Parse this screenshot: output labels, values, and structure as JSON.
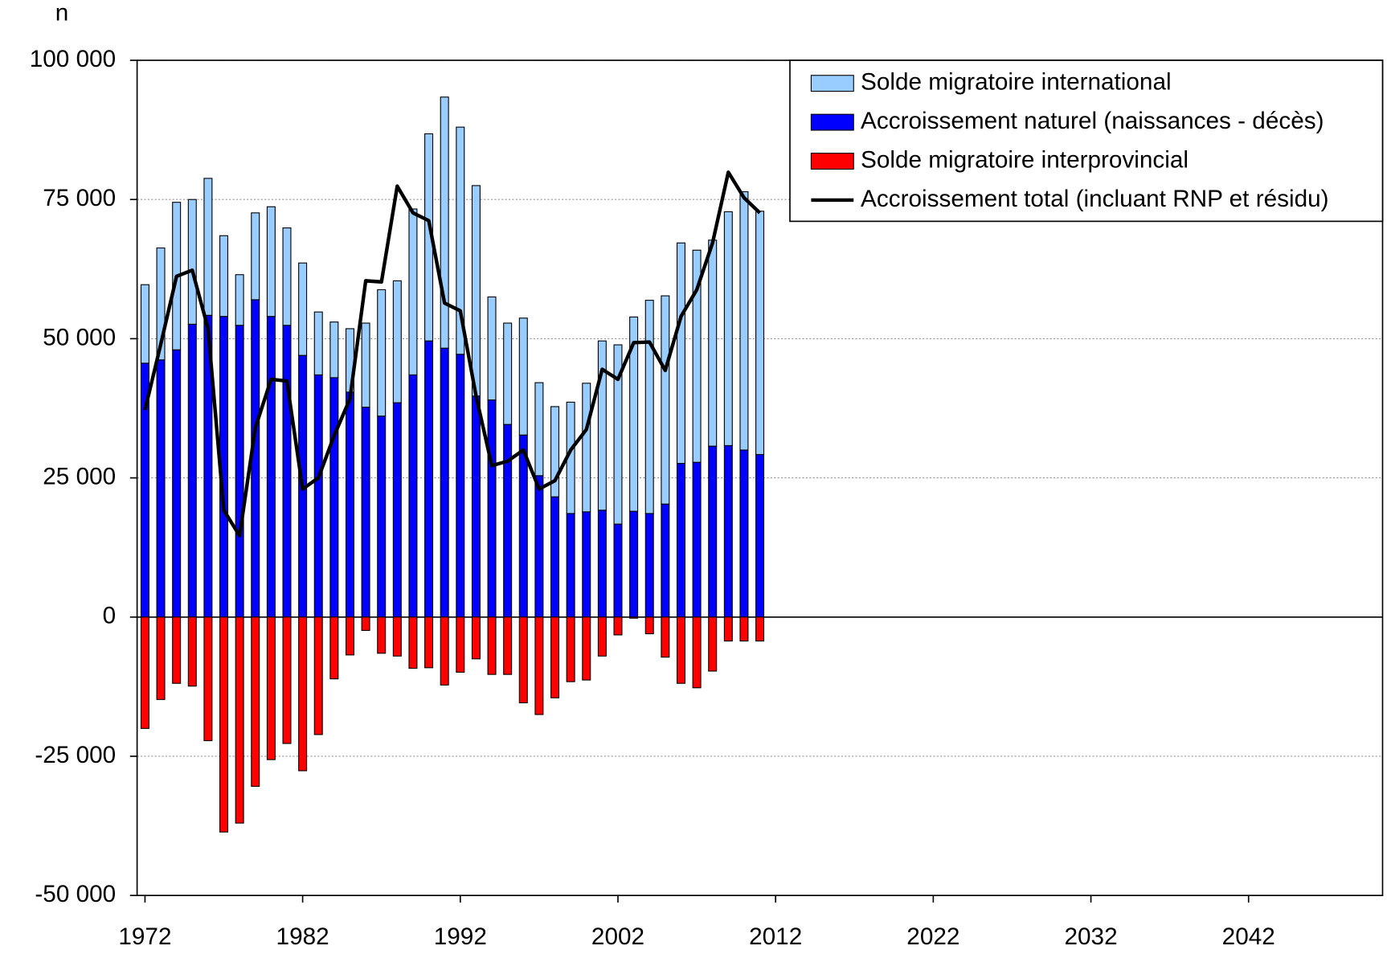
{
  "chart_data": {
    "type": "bar",
    "y_label": "n",
    "x": [
      1972,
      1973,
      1974,
      1975,
      1976,
      1977,
      1978,
      1979,
      1980,
      1981,
      1982,
      1983,
      1984,
      1985,
      1986,
      1987,
      1988,
      1989,
      1990,
      1991,
      1992,
      1993,
      1994,
      1995,
      1996,
      1997,
      1998,
      1999,
      2000,
      2001,
      2002,
      2003,
      2004,
      2005,
      2006,
      2007,
      2008,
      2009,
      2010,
      2011
    ],
    "series": [
      {
        "name": "Solde migratoire international",
        "color": "#99ccff",
        "values": [
          14100,
          20100,
          26500,
          22400,
          24600,
          14500,
          9100,
          15600,
          19700,
          17500,
          16600,
          11300,
          10000,
          11400,
          15100,
          22700,
          21900,
          29800,
          37200,
          45100,
          40800,
          37800,
          18500,
          18200,
          21000,
          16700,
          16200,
          20000,
          23100,
          30400,
          32200,
          34900,
          38300,
          37400,
          39600,
          38100,
          37000,
          42000,
          46400,
          43700
        ]
      },
      {
        "name": "Accroissement naturel (naissances - décès)",
        "color": "#0000ff",
        "values": [
          45600,
          46200,
          48000,
          52600,
          54200,
          54000,
          52400,
          57000,
          54000,
          52400,
          47000,
          43500,
          43000,
          40400,
          37700,
          36100,
          38500,
          43500,
          49600,
          48300,
          47200,
          39700,
          39000,
          34600,
          32700,
          25400,
          21600,
          18600,
          18900,
          19200,
          16700,
          19000,
          18600,
          20300,
          27600,
          27800,
          30700,
          30800,
          30000,
          29200
        ]
      },
      {
        "name": "Solde migratoire interprovincial",
        "color": "#ff0000",
        "values": [
          -20000,
          -14800,
          -11900,
          -12400,
          -22200,
          -38600,
          -37000,
          -30400,
          -25600,
          -22700,
          -27600,
          -21100,
          -11100,
          -6800,
          -2400,
          -6500,
          -7000,
          -9200,
          -9100,
          -12200,
          -9900,
          -7500,
          -10300,
          -10300,
          -15400,
          -17500,
          -14500,
          -11600,
          -11300,
          -7000,
          -3200,
          -200,
          -3000,
          -7200,
          -11900,
          -12700,
          -9700,
          -4300,
          -4300,
          -4300
        ]
      },
      {
        "name": "Accroissement total (incluant RNP et résidu)",
        "color": "#000000",
        "type": "line",
        "values": [
          37200,
          49000,
          61200,
          62300,
          51800,
          19200,
          14600,
          34000,
          42700,
          42400,
          23000,
          25000,
          32600,
          39200,
          60400,
          60200,
          77400,
          72600,
          71200,
          56400,
          55000,
          39700,
          27200,
          28000,
          30000,
          23000,
          24500,
          30000,
          33700,
          44500,
          42700,
          49300,
          49400,
          44300,
          54000,
          58800,
          67200,
          79900,
          75300,
          72600
        ]
      }
    ],
    "xlim": [
      1971.5,
      2050.5
    ],
    "xticks": [
      1972,
      1982,
      1992,
      2002,
      2012,
      2022,
      2032,
      2042
    ],
    "ylim": [
      -50000,
      100000
    ],
    "yticks": [
      {
        "value": -50000,
        "label": "-50 000"
      },
      {
        "value": -25000,
        "label": "-25 000"
      },
      0,
      {
        "value": 25000,
        "label": "25 000"
      },
      {
        "value": 50000,
        "label": "50 000"
      },
      {
        "value": 75000,
        "label": "75 000"
      },
      {
        "value": 100000,
        "label": "100 000"
      }
    ],
    "grid": true,
    "legend": "top-right"
  }
}
